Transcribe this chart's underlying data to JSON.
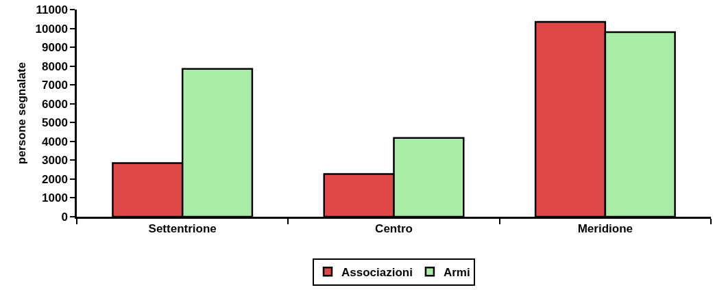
{
  "chart_data": {
    "type": "bar",
    "ylabel": "persone segnalate",
    "categories": [
      "Settentrione",
      "Centro",
      "Meridione"
    ],
    "series": [
      {
        "name": "Associazioni",
        "color": "#e04848",
        "values": [
          2850,
          2270,
          10350
        ]
      },
      {
        "name": "Armi",
        "color": "#a8eca8",
        "values": [
          7850,
          4180,
          9800
        ]
      }
    ],
    "ylim": [
      0,
      11000
    ],
    "yticks": [
      0,
      1000,
      2000,
      3000,
      4000,
      5000,
      6000,
      7000,
      8000,
      9000,
      10000,
      11000
    ],
    "grid": false,
    "legend": "bottom"
  }
}
